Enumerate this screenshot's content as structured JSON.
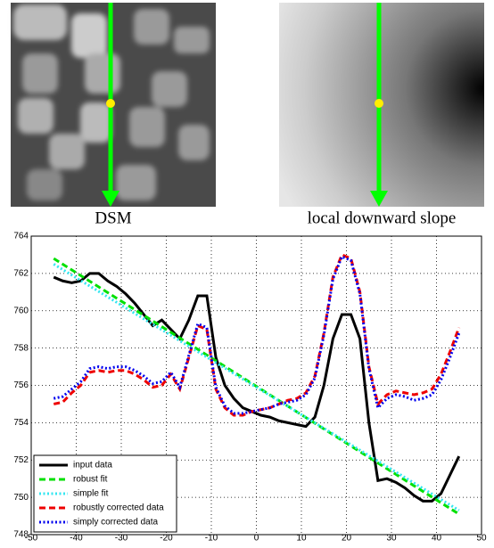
{
  "panels": [
    {
      "caption": "DSM"
    },
    {
      "caption": "local downward slope"
    }
  ],
  "chart_data": {
    "type": "line",
    "x": [
      -45,
      -43,
      -41,
      -39,
      -37,
      -35,
      -33,
      -31,
      -29,
      -27,
      -25,
      -23,
      -21,
      -19,
      -17,
      -15,
      -13,
      -11,
      -9,
      -7,
      -5,
      -3,
      -1,
      1,
      3,
      5,
      7,
      9,
      11,
      13,
      15,
      17,
      19,
      21,
      23,
      25,
      27,
      29,
      31,
      33,
      35,
      37,
      39,
      41,
      43,
      45
    ],
    "series": [
      {
        "name": "input data",
        "color": "#000000",
        "style": "solid",
        "values": [
          761.8,
          761.6,
          761.5,
          761.6,
          762.0,
          762.0,
          761.6,
          761.3,
          760.9,
          760.4,
          759.8,
          759.2,
          759.5,
          759.0,
          758.5,
          759.5,
          760.8,
          760.8,
          757.5,
          756.0,
          755.3,
          754.8,
          754.6,
          754.4,
          754.3,
          754.1,
          754.0,
          753.9,
          753.8,
          754.3,
          756.0,
          758.5,
          759.8,
          759.8,
          758.5,
          754.0,
          750.9,
          751.0,
          750.8,
          750.5,
          750.1,
          749.8,
          749.8,
          750.2,
          751.2,
          752.2
        ]
      },
      {
        "name": "robust fit",
        "color": "#00e000",
        "style": "dashed",
        "x": [
          -45,
          45
        ],
        "values": [
          762.8,
          749.1
        ]
      },
      {
        "name": "simple fit",
        "color": "#33e6f0",
        "style": "dotted",
        "x": [
          -45,
          45
        ],
        "values": [
          762.5,
          749.3
        ]
      },
      {
        "name": "robustly corrected data",
        "color": "#ee0000",
        "style": "dashed",
        "values": [
          755.0,
          755.1,
          755.6,
          756.0,
          756.7,
          756.8,
          756.7,
          756.8,
          756.8,
          756.6,
          756.3,
          755.9,
          756.0,
          756.6,
          755.8,
          757.5,
          759.2,
          759.0,
          755.8,
          754.8,
          754.4,
          754.4,
          754.6,
          754.7,
          754.8,
          755.0,
          755.2,
          755.3,
          755.6,
          756.5,
          758.8,
          761.8,
          763.0,
          762.8,
          761.0,
          757.0,
          755.0,
          755.5,
          755.7,
          755.6,
          755.5,
          755.6,
          755.8,
          756.6,
          757.8,
          759.1
        ]
      },
      {
        "name": "simply corrected data",
        "color": "#0000ee",
        "style": "dotted",
        "values": [
          755.3,
          755.4,
          755.8,
          756.2,
          756.9,
          757.0,
          756.9,
          757.0,
          757.0,
          756.8,
          756.5,
          756.1,
          756.2,
          756.7,
          755.9,
          757.6,
          759.3,
          759.1,
          755.9,
          754.9,
          754.5,
          754.5,
          754.6,
          754.7,
          754.8,
          755.0,
          755.1,
          755.2,
          755.5,
          756.4,
          758.7,
          761.7,
          762.9,
          762.7,
          760.9,
          756.9,
          754.8,
          755.3,
          755.5,
          755.4,
          755.2,
          755.3,
          755.5,
          756.3,
          757.5,
          758.8
        ]
      }
    ],
    "xlim": [
      -50,
      50
    ],
    "xticks": [
      -50,
      -40,
      -30,
      -20,
      -10,
      0,
      10,
      20,
      30,
      40,
      50
    ],
    "ylim": [
      748,
      764
    ],
    "yticks": [
      748,
      750,
      752,
      754,
      756,
      758,
      760,
      762,
      764
    ],
    "grid": true,
    "legend": "lower left"
  }
}
